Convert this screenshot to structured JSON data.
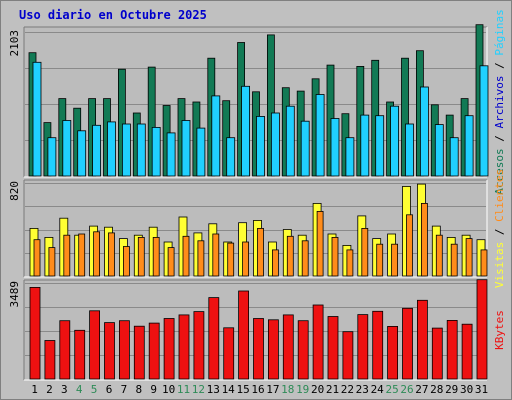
{
  "title": "Uso diario en Octubre 2025",
  "colors": {
    "background": "#c0c0c0",
    "plot_bg": "#bcbcbc",
    "title": "#0000cc",
    "axis_text": "#000000",
    "weekend_text": "#2e8b57",
    "accesos": "#127a55",
    "paginas": "#20d0ff",
    "visitas": "#ffff33",
    "clientes": "#ff8c1a",
    "kbytes": "#ee1111"
  },
  "chart_data": [
    {
      "type": "bar",
      "panel": "top",
      "ymax_label": "2103",
      "ymax": 2103,
      "grid": true,
      "right_labels": [
        {
          "text": "Accesos",
          "color": "#127a55"
        },
        {
          "text": " / ",
          "color": "#000000"
        },
        {
          "text": "Archivos",
          "color": "#0000cc"
        },
        {
          "text": " / ",
          "color": "#000000"
        },
        {
          "text": "Páginas",
          "color": "#20d0ff"
        }
      ],
      "series": [
        {
          "name": "Accesos",
          "color": "#127a55",
          "values": [
            1800,
            780,
            1130,
            990,
            1130,
            1130,
            1560,
            920,
            1590,
            1030,
            1130,
            1080,
            1720,
            1100,
            1950,
            1230,
            2060,
            1290,
            1240,
            1420,
            1620,
            910,
            1600,
            1690,
            1080,
            1720,
            1830,
            1040,
            890,
            1130,
            2210
          ]
        },
        {
          "name": "Archivos",
          "color": "#20d0ff",
          "values": [
            1660,
            560,
            810,
            660,
            740,
            790,
            760,
            760,
            710,
            630,
            810,
            700,
            1170,
            560,
            1310,
            870,
            920,
            1020,
            800,
            1190,
            840,
            560,
            890,
            880,
            1020,
            760,
            1300,
            750,
            560,
            880,
            1610
          ]
        }
      ]
    },
    {
      "type": "bar",
      "panel": "middle",
      "ymax_label": "820",
      "ymax": 820,
      "grid": true,
      "right_labels": [
        {
          "text": "Visitas",
          "color": "#ffff33"
        },
        {
          "text": " / ",
          "color": "#000000"
        },
        {
          "text": "Clientes",
          "color": "#ff8c1a"
        }
      ],
      "series": [
        {
          "name": "Visitas",
          "color": "#ffff33",
          "values": [
            420,
            340,
            510,
            360,
            440,
            430,
            330,
            360,
            430,
            300,
            520,
            380,
            460,
            300,
            470,
            490,
            300,
            410,
            360,
            640,
            370,
            270,
            530,
            330,
            370,
            790,
            810,
            440,
            340,
            360,
            320
          ]
        },
        {
          "name": "Clientes",
          "color": "#ff8c1a",
          "values": [
            320,
            250,
            360,
            370,
            390,
            380,
            260,
            340,
            340,
            250,
            350,
            310,
            370,
            290,
            300,
            420,
            230,
            350,
            310,
            570,
            340,
            230,
            420,
            280,
            280,
            540,
            640,
            360,
            280,
            330,
            230
          ]
        }
      ]
    },
    {
      "type": "bar",
      "panel": "bottom",
      "ymax_label": "3489",
      "ymax": 3489,
      "grid": true,
      "right_labels": [
        {
          "text": "KBytes",
          "color": "#ee1111"
        }
      ],
      "series": [
        {
          "name": "KBytes",
          "color": "#ee1111",
          "values": [
            3330,
            1400,
            2120,
            1770,
            2480,
            2050,
            2120,
            1920,
            2030,
            2200,
            2330,
            2450,
            2960,
            1860,
            3200,
            2200,
            2150,
            2330,
            2120,
            2690,
            2270,
            1720,
            2340,
            2460,
            1910,
            2570,
            2860,
            1850,
            2130,
            1990,
            3610
          ]
        }
      ]
    }
  ],
  "x_labels": [
    {
      "label": "1",
      "weekend": false
    },
    {
      "label": "2",
      "weekend": false
    },
    {
      "label": "3",
      "weekend": false
    },
    {
      "label": "4",
      "weekend": true
    },
    {
      "label": "5",
      "weekend": true
    },
    {
      "label": "6",
      "weekend": false
    },
    {
      "label": "7",
      "weekend": false
    },
    {
      "label": "8",
      "weekend": false
    },
    {
      "label": "9",
      "weekend": false
    },
    {
      "label": "10",
      "weekend": false
    },
    {
      "label": "11",
      "weekend": true
    },
    {
      "label": "12",
      "weekend": true
    },
    {
      "label": "13",
      "weekend": false
    },
    {
      "label": "14",
      "weekend": false
    },
    {
      "label": "15",
      "weekend": false
    },
    {
      "label": "16",
      "weekend": false
    },
    {
      "label": "17",
      "weekend": false
    },
    {
      "label": "18",
      "weekend": true
    },
    {
      "label": "19",
      "weekend": true
    },
    {
      "label": "20",
      "weekend": false
    },
    {
      "label": "21",
      "weekend": false
    },
    {
      "label": "22",
      "weekend": false
    },
    {
      "label": "23",
      "weekend": false
    },
    {
      "label": "24",
      "weekend": false
    },
    {
      "label": "25",
      "weekend": true
    },
    {
      "label": "26",
      "weekend": true
    },
    {
      "label": "27",
      "weekend": false
    },
    {
      "label": "28",
      "weekend": false
    },
    {
      "label": "29",
      "weekend": false
    },
    {
      "label": "30",
      "weekend": false
    },
    {
      "label": "31",
      "weekend": false
    }
  ]
}
